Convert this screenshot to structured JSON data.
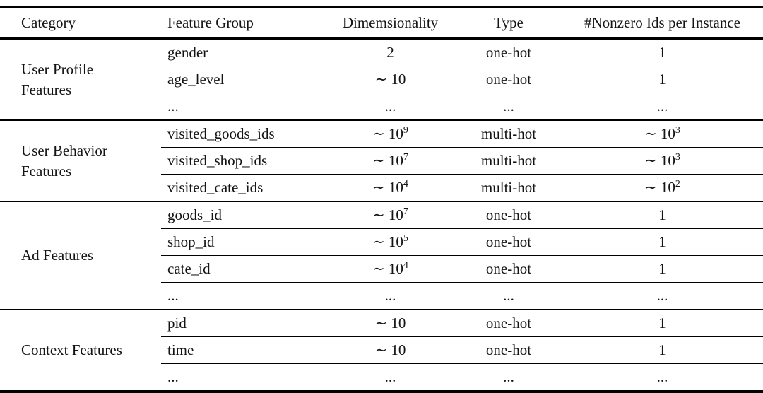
{
  "table": {
    "headers": {
      "category": "Category",
      "feature_group": "Feature Group",
      "dimensionality": "Dimemsionality",
      "type": "Type",
      "nonzero": "#Nonzero Ids per Instance"
    },
    "groups": [
      {
        "category": "User Profile Features",
        "rows": [
          {
            "feature": "gender",
            "dim": "2",
            "type": "one-hot",
            "nonzero": "1"
          },
          {
            "feature": "age_level",
            "dim": "∼ 10",
            "type": "one-hot",
            "nonzero": "1"
          },
          {
            "feature": "...",
            "dim": "...",
            "type": "...",
            "nonzero": "..."
          }
        ]
      },
      {
        "category": "User Behavior Features",
        "rows": [
          {
            "feature": "visited_goods_ids",
            "dim": "∼ 10^9",
            "type": "multi-hot",
            "nonzero": "∼ 10^3"
          },
          {
            "feature": "visited_shop_ids",
            "dim": "∼ 10^7",
            "type": "multi-hot",
            "nonzero": "∼ 10^3"
          },
          {
            "feature": "visited_cate_ids",
            "dim": "∼ 10^4",
            "type": "multi-hot",
            "nonzero": "∼ 10^2"
          }
        ]
      },
      {
        "category": "Ad Features",
        "rows": [
          {
            "feature": "goods_id",
            "dim": "∼ 10^7",
            "type": "one-hot",
            "nonzero": "1"
          },
          {
            "feature": "shop_id",
            "dim": "∼ 10^5",
            "type": "one-hot",
            "nonzero": "1"
          },
          {
            "feature": "cate_id",
            "dim": "∼ 10^4",
            "type": "one-hot",
            "nonzero": "1"
          },
          {
            "feature": "...",
            "dim": "...",
            "type": "...",
            "nonzero": "..."
          }
        ]
      },
      {
        "category": "Context Features",
        "rows": [
          {
            "feature": "pid",
            "dim": "∼ 10",
            "type": "one-hot",
            "nonzero": "1"
          },
          {
            "feature": "time",
            "dim": "∼ 10",
            "type": "one-hot",
            "nonzero": "1"
          },
          {
            "feature": "...",
            "dim": "...",
            "type": "...",
            "nonzero": "..."
          }
        ]
      }
    ]
  }
}
